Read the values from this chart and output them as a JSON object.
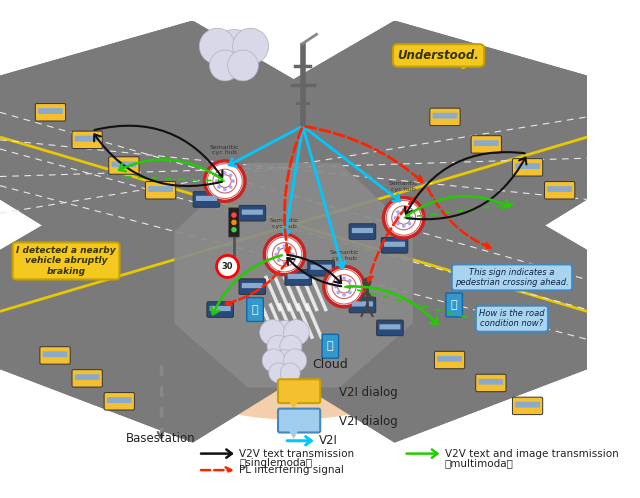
{
  "bg_color": "#ffffff",
  "road_color": "#7a7a7a",
  "road_edge_color": "#555555",
  "lane_white_color": "#e8e8e8",
  "ellipse_color": "#f0c090",
  "ellipse_alpha": 0.75,
  "legend": {
    "cloud_label": "Cloud",
    "v2i_dialog_yellow_label": "V2I dialog",
    "v2i_dialog_blue_label": "V2I dialog",
    "basestation_label": "Basestation",
    "v2i_label": "V2I",
    "v2v_text_label": "V2V text transmission",
    "v2v_text_sub": "（singlemoda）",
    "v2v_img_label": "V2V text and image transmission",
    "v2v_img_sub": "（multimoda）",
    "pl_label": "PL interfering signal"
  },
  "arrow_colors": {
    "v2i": "#00c8ff",
    "v2v_text": "#111111",
    "v2v_img": "#22cc00",
    "pl": "#ff2200"
  },
  "figsize": [
    6.4,
    4.98
  ],
  "dpi": 100
}
